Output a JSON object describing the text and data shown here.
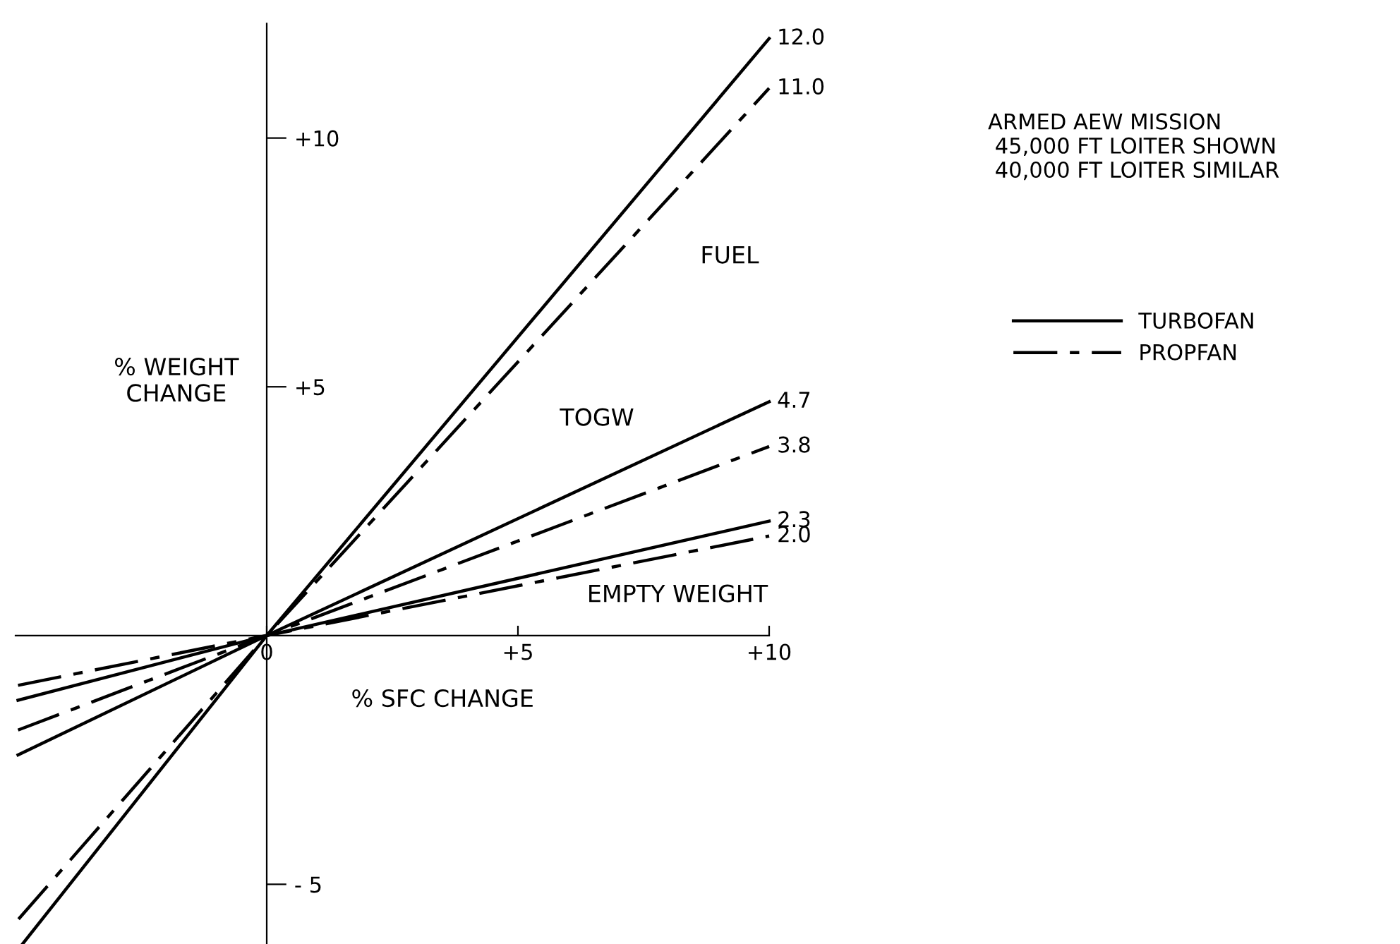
{
  "chart_data": {
    "type": "line",
    "xlabel": "% SFC CHANGE",
    "ylabel": "% WEIGHT\nCHANGE",
    "xlim": [
      -5,
      10
    ],
    "ylim": [
      -6.2,
      12.3
    ],
    "xticks": [
      0,
      {
        "value": 5,
        "label": "+5"
      },
      {
        "value": 10,
        "label": "+10"
      }
    ],
    "yticks": [
      {
        "value": -5,
        "label": "- 5"
      },
      {
        "value": 5,
        "label": "+5"
      },
      {
        "value": 10,
        "label": "+10"
      }
    ],
    "legend": "right",
    "marker": "none",
    "series": [
      {
        "name": "TURBOFAN",
        "color": "#000000",
        "line_style": "solid",
        "x": [
          -4.86,
          0,
          10
        ],
        "values": [
          -6.2,
          0,
          12.0
        ],
        "value_labels": [
          null,
          null,
          "12.0"
        ]
      },
      {
        "name": "PROPFAN",
        "color": "#000000",
        "line_style": "dashed",
        "x": [
          -4.94,
          0,
          10
        ],
        "values": [
          -5.7,
          0,
          11.0
        ],
        "value_labels": [
          null,
          null,
          "11.0"
        ]
      },
      {
        "color": "#000000",
        "line_style": "solid",
        "x": [
          -4.95,
          0,
          10
        ],
        "values": [
          -2.4,
          0,
          4.7
        ],
        "value_labels": [
          null,
          null,
          "4.7"
        ]
      },
      {
        "color": "#000000",
        "line_style": "dashed",
        "x": [
          -4.95,
          0,
          10
        ],
        "values": [
          -1.9,
          0,
          3.8
        ],
        "value_labels": [
          null,
          null,
          "3.8"
        ]
      },
      {
        "color": "#000000",
        "line_style": "solid",
        "x": [
          -4.95,
          0,
          10
        ],
        "values": [
          -1.3,
          0,
          2.3
        ],
        "value_labels": [
          null,
          null,
          "2.3"
        ]
      },
      {
        "color": "#000000",
        "line_style": "dashed",
        "x": [
          -4.95,
          0,
          10
        ],
        "values": [
          -1.0,
          0,
          2.0
        ],
        "value_labels": [
          null,
          null,
          "2.0"
        ]
      }
    ],
    "annotations": [
      "FUEL",
      "TOGW",
      "EMPTY WEIGHT",
      "ARMED AEW MISSION\n 45,000 FT LOITER SHOWN\n 40,000 FT LOITER SIMILAR"
    ]
  }
}
